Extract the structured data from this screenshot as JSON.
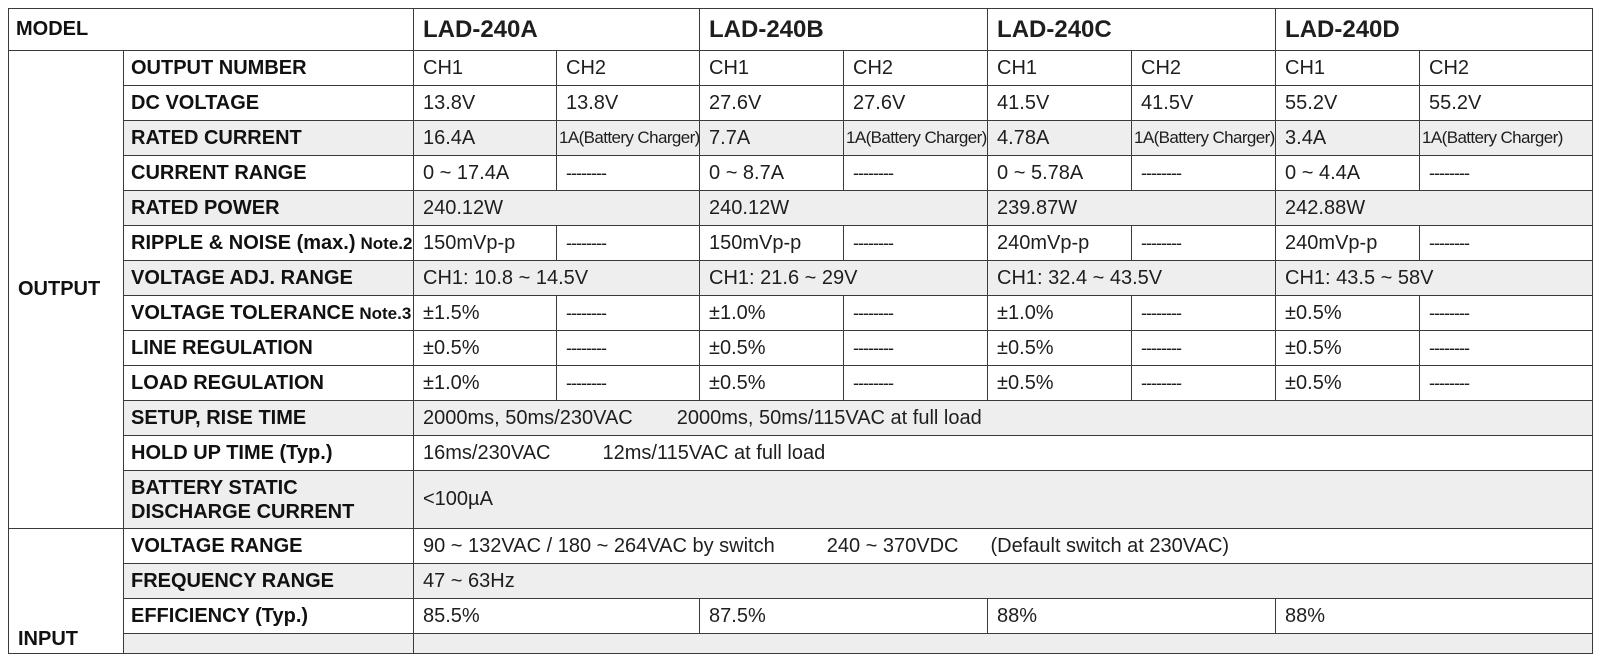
{
  "header": {
    "model_label": "MODEL",
    "models": [
      "LAD-240A",
      "LAD-240B",
      "LAD-240C",
      "LAD-240D"
    ]
  },
  "groups": {
    "output": "OUTPUT",
    "input": "INPUT"
  },
  "na": "--------",
  "output_rows": {
    "output_number": {
      "label": "OUTPUT NUMBER",
      "values": [
        "CH1",
        "CH2",
        "CH1",
        "CH2",
        "CH1",
        "CH2",
        "CH1",
        "CH2"
      ]
    },
    "dc_voltage": {
      "label": "DC VOLTAGE",
      "values": [
        "13.8V",
        "13.8V",
        "27.6V",
        "27.6V",
        "41.5V",
        "41.5V",
        "55.2V",
        "55.2V"
      ]
    },
    "rated_current": {
      "label": "RATED CURRENT",
      "values": [
        "16.4A",
        "1A(Battery Charger)",
        "7.7A",
        "1A(Battery Charger)",
        "4.78A",
        "1A(Battery Charger)",
        "3.4A",
        "1A(Battery Charger)"
      ]
    },
    "current_range": {
      "label": "CURRENT RANGE",
      "values": [
        "0 ~ 17.4A",
        "0 ~ 8.7A",
        "0 ~ 5.78A",
        "0 ~ 4.4A"
      ]
    },
    "rated_power": {
      "label": "RATED POWER",
      "values": [
        "240.12W",
        "240.12W",
        "239.87W",
        "242.88W"
      ]
    },
    "ripple_noise": {
      "label": "RIPPLE & NOISE (max.)",
      "note": "Note.2",
      "values": [
        "150mVp-p",
        "150mVp-p",
        "240mVp-p",
        "240mVp-p"
      ]
    },
    "voltage_adj_range": {
      "label": "VOLTAGE ADJ. RANGE",
      "values": [
        "CH1: 10.8 ~ 14.5V",
        "CH1: 21.6 ~ 29V",
        "CH1: 32.4 ~ 43.5V",
        "CH1: 43.5 ~ 58V"
      ]
    },
    "voltage_tolerance": {
      "label": "VOLTAGE TOLERANCE",
      "note": "Note.3",
      "values": [
        "±1.5%",
        "±1.0%",
        "±1.0%",
        "±0.5%"
      ]
    },
    "line_regulation": {
      "label": "LINE REGULATION",
      "values": [
        "±0.5%",
        "±0.5%",
        "±0.5%",
        "±0.5%"
      ]
    },
    "load_regulation": {
      "label": "LOAD REGULATION",
      "values": [
        "±1.0%",
        "±0.5%",
        "±0.5%",
        "±0.5%"
      ]
    },
    "setup_rise_time": {
      "label": "SETUP, RISE TIME",
      "values": [
        "2000ms, 50ms/230VAC",
        "2000ms, 50ms/115VAC at full load"
      ]
    },
    "hold_up_time": {
      "label": "HOLD UP TIME (Typ.)",
      "values": [
        "16ms/230VAC",
        "12ms/115VAC at full load"
      ]
    },
    "battery_discharge": {
      "label": "BATTERY STATIC DISCHARGE CURRENT",
      "value": "<100µA"
    }
  },
  "input_rows": {
    "voltage_range": {
      "label": "VOLTAGE RANGE",
      "values": [
        "90 ~ 132VAC / 180 ~ 264VAC by switch",
        "240 ~ 370VDC",
        "(Default switch at 230VAC)"
      ]
    },
    "frequency_range": {
      "label": "FREQUENCY RANGE",
      "value": "47 ~ 63Hz"
    },
    "efficiency": {
      "label": "EFFICIENCY (Typ.)",
      "values": [
        "85.5%",
        "87.5%",
        "88%",
        "88%"
      ]
    }
  }
}
